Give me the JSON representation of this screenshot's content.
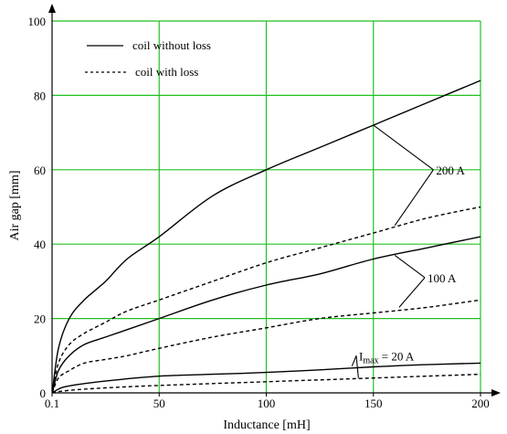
{
  "chart_data": {
    "type": "line",
    "xlabel": "Inductance [mH]",
    "ylabel": "Air gap [mm]",
    "xlim": [
      0,
      200
    ],
    "ylim": [
      0,
      100
    ],
    "xticks": [
      "0.1",
      "50",
      "100",
      "150",
      "200"
    ],
    "yticks": [
      "0",
      "20",
      "40",
      "60",
      "80",
      "100"
    ],
    "grid": true,
    "grid_color": "#22c022",
    "legend": {
      "placement": "top-left",
      "entries": [
        {
          "label": "coil without loss",
          "style": "solid"
        },
        {
          "label": "coil with loss",
          "style": "dashed"
        }
      ]
    },
    "series": [
      {
        "group": "200 A",
        "style": "solid",
        "x": [
          0.1,
          3,
          8,
          15,
          25,
          35,
          50,
          75,
          100,
          125,
          150,
          175,
          200
        ],
        "y": [
          0,
          12,
          20,
          25,
          30,
          36,
          42,
          53,
          60,
          66,
          72,
          78,
          84
        ]
      },
      {
        "group": "200 A",
        "style": "dashed",
        "x": [
          0.1,
          3,
          8,
          15,
          25,
          35,
          50,
          75,
          100,
          125,
          150,
          175,
          200
        ],
        "y": [
          0,
          8,
          13,
          16,
          19,
          22,
          25,
          30,
          35,
          39,
          43,
          47,
          50
        ]
      },
      {
        "group": "100 A",
        "style": "solid",
        "x": [
          0.1,
          3,
          8,
          15,
          25,
          35,
          50,
          75,
          100,
          125,
          150,
          175,
          200
        ],
        "y": [
          0,
          6,
          10,
          13,
          15,
          17,
          20,
          25,
          29,
          32,
          36,
          39,
          42
        ]
      },
      {
        "group": "100 A",
        "style": "dashed",
        "x": [
          0.1,
          3,
          8,
          15,
          25,
          35,
          50,
          75,
          100,
          125,
          150,
          175,
          200
        ],
        "y": [
          0,
          4,
          6,
          8,
          9,
          10,
          12,
          15,
          17.5,
          20,
          21.5,
          23,
          25
        ]
      },
      {
        "group": "Imax = 20 A",
        "style": "solid",
        "x": [
          0.1,
          5,
          15,
          30,
          50,
          75,
          100,
          125,
          150,
          175,
          200
        ],
        "y": [
          0,
          1.5,
          2.5,
          3.5,
          4.5,
          5,
          5.5,
          6.2,
          7,
          7.6,
          8
        ]
      },
      {
        "group": "Imax = 20 A",
        "style": "dashed",
        "x": [
          0.1,
          5,
          15,
          30,
          50,
          75,
          100,
          125,
          150,
          175,
          200
        ],
        "y": [
          0,
          0.5,
          1,
          1.5,
          2,
          2.5,
          3,
          3.5,
          4,
          4.5,
          5
        ]
      }
    ],
    "annotations": [
      {
        "label": "200 A",
        "text": "200 A",
        "x": 178,
        "y": 60,
        "pointers": [
          [
            150,
            72
          ],
          [
            160,
            45
          ]
        ]
      },
      {
        "label": "100 A",
        "text": "100 A",
        "x": 174,
        "y": 31,
        "pointers": [
          [
            160,
            37
          ],
          [
            162,
            23
          ]
        ]
      },
      {
        "label": "Imax = 20 A",
        "text_sub_main": "I",
        "text_sub": "max",
        "text_rest": " = 20 A",
        "x": 142,
        "y": 10,
        "pointers": [
          [
            140,
            7.2
          ],
          [
            143,
            4
          ]
        ]
      }
    ]
  }
}
